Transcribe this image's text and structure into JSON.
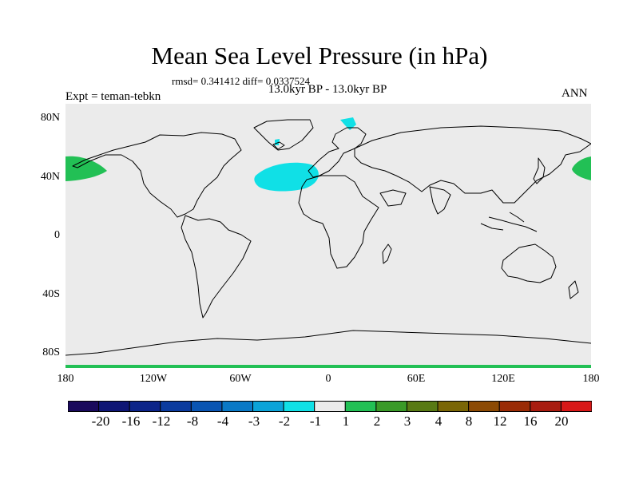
{
  "title": "Mean Sea Level Pressure (in hPa)",
  "stats": "rmsd= 0.341412 diff= 0.0337524",
  "period": "13.0kyr BP - 13.0kyr BP",
  "experiment": "Expt = teman-tebkn",
  "season": "ANN",
  "lat_labels": [
    "80N",
    "40N",
    "0",
    "40S",
    "80S"
  ],
  "lon_labels": [
    "180",
    "120W",
    "60W",
    "0",
    "60E",
    "120E",
    "180"
  ],
  "colorbar": {
    "labels": [
      "-20",
      "-16",
      "-12",
      "-8",
      "-4",
      "-3",
      "-2",
      "-1",
      "1",
      "2",
      "3",
      "4",
      "8",
      "12",
      "16",
      "20"
    ],
    "colors": [
      "#1a0a5c",
      "#0f1675",
      "#0c2489",
      "#0b3b9e",
      "#0a55b2",
      "#0a79c6",
      "#0ba3d8",
      "#10e0e6",
      "#ebebeb",
      "#22c055",
      "#3a9a28",
      "#587a14",
      "#7a6606",
      "#8c4a04",
      "#9a2c06",
      "#a81c10",
      "#d81818"
    ]
  },
  "colors": {
    "map_background": "#ebebeb",
    "negative_anomaly": "#10e0e6",
    "positive_anomaly": "#22c055"
  }
}
